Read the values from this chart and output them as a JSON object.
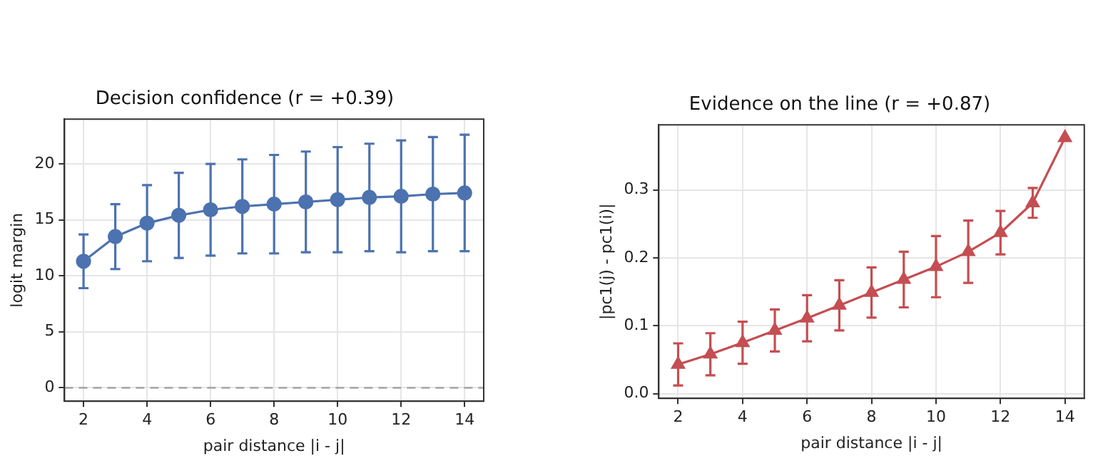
{
  "chart_data": [
    {
      "type": "line",
      "title": "Decision confidence (r = +0.39)",
      "xlabel": "pair distance |i - j|",
      "ylabel": "logit margin",
      "x": [
        2,
        3,
        4,
        5,
        6,
        7,
        8,
        9,
        10,
        11,
        12,
        13,
        14
      ],
      "series": [
        {
          "color": "#4c72b0",
          "values": [
            11.3,
            13.5,
            14.7,
            15.4,
            15.9,
            16.2,
            16.4,
            16.6,
            16.8,
            17.0,
            17.1,
            17.3,
            17.4
          ],
          "errors": [
            2.4,
            2.9,
            3.4,
            3.8,
            4.1,
            4.2,
            4.4,
            4.5,
            4.7,
            4.8,
            5.0,
            5.1,
            5.2
          ]
        }
      ],
      "xlim": [
        1.4,
        14.6
      ],
      "ylim": [
        -1.2,
        24
      ],
      "xticks": [
        2,
        4,
        6,
        8,
        10,
        12,
        14
      ],
      "yticks": [
        0,
        5,
        10,
        15,
        20
      ],
      "grid": true,
      "marker": "circle",
      "ref_lines": [
        {
          "axis": "y",
          "value": 0,
          "color": "#aaaaaa",
          "line_style": "dashed"
        }
      ]
    },
    {
      "type": "line",
      "title": "Evidence on the line (r = +0.87)",
      "xlabel": "pair distance |i - j|",
      "ylabel": "|pc1(j) - pc1(i)|",
      "x": [
        2,
        3,
        4,
        5,
        6,
        7,
        8,
        9,
        10,
        11,
        12,
        13,
        14
      ],
      "series": [
        {
          "color": "#c44e52",
          "values": [
            0.043,
            0.058,
            0.075,
            0.093,
            0.111,
            0.13,
            0.149,
            0.168,
            0.187,
            0.209,
            0.237,
            0.281,
            0.377
          ],
          "errors": [
            0.031,
            0.031,
            0.031,
            0.031,
            0.034,
            0.037,
            0.037,
            0.041,
            0.045,
            0.046,
            0.032,
            0.022,
            null
          ]
        }
      ],
      "xlim": [
        1.4,
        14.6
      ],
      "ylim": [
        -0.007,
        0.396
      ],
      "xticks": [
        2,
        4,
        6,
        8,
        10,
        12,
        14
      ],
      "yticks": [
        {
          "value": 0,
          "label": "0.0"
        },
        {
          "value": 0.1,
          "label": "0.1"
        },
        {
          "value": 0.2,
          "label": "0.2"
        },
        {
          "value": 0.3,
          "label": "0.3"
        }
      ],
      "grid": true,
      "marker": "triangle"
    }
  ]
}
